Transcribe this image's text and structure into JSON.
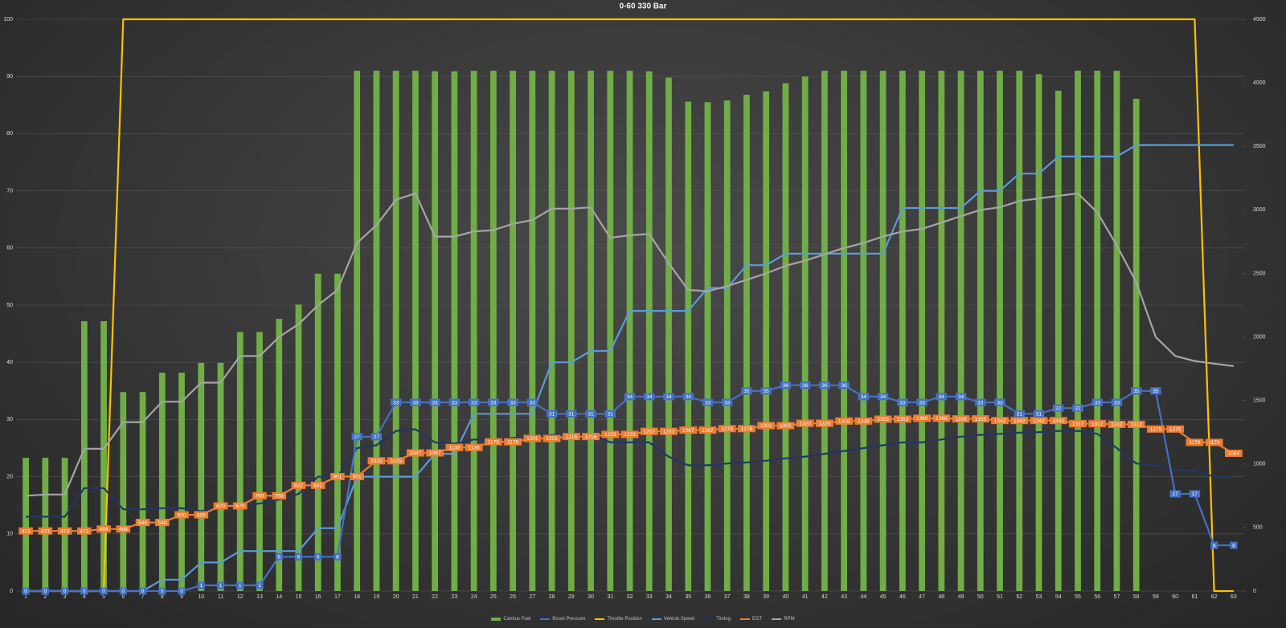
{
  "chart_data": {
    "type": "bar",
    "title": "0-60 330 Bar",
    "categories": [
      1,
      2,
      3,
      4,
      5,
      6,
      7,
      8,
      9,
      10,
      11,
      12,
      13,
      14,
      15,
      16,
      17,
      18,
      19,
      20,
      21,
      22,
      23,
      24,
      25,
      26,
      27,
      28,
      29,
      30,
      31,
      32,
      33,
      34,
      35,
      36,
      37,
      38,
      39,
      40,
      41,
      42,
      43,
      44,
      45,
      46,
      47,
      48,
      49,
      50,
      51,
      52,
      53,
      54,
      55,
      56,
      57,
      58,
      59,
      60,
      61,
      62,
      63
    ],
    "ylim": [
      0,
      100
    ],
    "yticks": [
      0,
      10,
      20,
      30,
      40,
      50,
      60,
      70,
      80,
      90,
      100
    ],
    "y2lim": [
      0,
      4500
    ],
    "y2ticks": [
      0,
      500,
      1000,
      1500,
      2000,
      2500,
      3000,
      3500,
      4000,
      4500
    ],
    "grid": true,
    "legend": "bottom",
    "series": [
      {
        "name": "Canbus Fuel",
        "type": "bar",
        "color": "#70ad47",
        "values": [
          23.3,
          23.3,
          23.3,
          47.2,
          47.2,
          34.8,
          34.8,
          38.2,
          38.2,
          39.9,
          39.9,
          45.3,
          45.3,
          47.6,
          50.1,
          55.5,
          55.5,
          91,
          91,
          91,
          91,
          90.9,
          90.9,
          91,
          91,
          91,
          91,
          91,
          91,
          91,
          91,
          91,
          90.9,
          89.8,
          85.6,
          85.5,
          85.8,
          86.8,
          87.4,
          88.8,
          90,
          91,
          91,
          91,
          91,
          91,
          91,
          91,
          91,
          91,
          91,
          91,
          90.4,
          87.5,
          91,
          91,
          91,
          86.1,
          null,
          null,
          null,
          null,
          null
        ]
      },
      {
        "name": "Boost Pressure",
        "type": "line",
        "color": "#4472c4",
        "data_labels": true,
        "values": [
          0,
          0,
          0,
          0,
          0,
          0,
          0,
          0,
          0,
          1,
          1,
          1,
          1,
          6,
          6,
          6,
          6,
          27,
          27,
          33,
          33,
          33,
          33,
          33,
          33,
          33,
          33,
          31,
          31,
          31,
          31,
          34,
          34,
          34,
          34,
          33,
          33,
          35,
          35,
          36,
          36,
          36,
          36,
          34,
          34,
          33,
          33,
          34,
          34,
          33,
          33,
          31,
          31,
          32,
          32,
          33,
          33,
          35,
          35,
          17,
          17,
          8,
          8
        ]
      },
      {
        "name": "Throttle Position",
        "type": "line",
        "color": "#ffc000",
        "values": [
          0,
          0,
          0,
          0,
          0,
          100,
          100,
          100,
          100,
          100,
          100,
          100,
          100,
          100,
          100,
          100,
          100,
          100,
          100,
          100,
          100,
          100,
          100,
          100,
          100,
          100,
          100,
          100,
          100,
          100,
          100,
          100,
          100,
          100,
          100,
          100,
          100,
          100,
          100,
          100,
          100,
          100,
          100,
          100,
          100,
          100,
          100,
          100,
          100,
          100,
          100,
          100,
          100,
          100,
          100,
          100,
          100,
          100,
          100,
          100,
          100,
          0,
          0
        ]
      },
      {
        "name": "Vehicle Speed",
        "type": "line",
        "color": "#5b9bd5",
        "values": [
          0,
          0,
          0,
          0,
          0,
          0,
          0,
          2,
          2,
          5,
          5,
          7,
          7,
          7,
          7,
          11,
          11,
          20,
          20,
          20,
          20,
          24,
          24,
          31,
          31,
          31,
          31,
          40,
          40,
          42,
          42,
          49,
          49,
          49,
          49,
          53,
          53,
          57,
          57,
          59,
          59,
          59,
          59,
          59,
          59,
          67,
          67,
          67,
          67,
          70,
          70,
          73,
          73,
          76,
          76,
          76,
          76,
          78,
          78,
          78,
          78,
          78,
          78
        ]
      },
      {
        "name": "Timing",
        "type": "line",
        "color": "#1f3864",
        "values": [
          13,
          13,
          13,
          18,
          18,
          14.3,
          14.3,
          14.5,
          14.5,
          14,
          14.5,
          15,
          15.3,
          16,
          17,
          20,
          20,
          25,
          25.5,
          28,
          28.3,
          26,
          25.8,
          26.5,
          26.5,
          26.8,
          27,
          27.3,
          27.5,
          27.5,
          26,
          26,
          26,
          23.5,
          22,
          22,
          22.3,
          22.5,
          22.8,
          23.2,
          23.5,
          24,
          24.5,
          25,
          25.5,
          26,
          26,
          26.5,
          27,
          27.3,
          27.5,
          27.7,
          27.8,
          28,
          28,
          27.5,
          25,
          22.3,
          22,
          21.2,
          21,
          20,
          20
        ]
      },
      {
        "name": "EGT",
        "type": "line",
        "axis": "y2",
        "color": "#ed7d31",
        "data_labels": true,
        "values": [
          473,
          473,
          473,
          473,
          488,
          488,
          540,
          540,
          600,
          600,
          670,
          670,
          750,
          750,
          832,
          832,
          901,
          901,
          1025,
          1025,
          1087,
          1087,
          1130,
          1130,
          1175,
          1175,
          1201,
          1201,
          1216,
          1216,
          1233,
          1233,
          1257,
          1257,
          1267,
          1267,
          1278,
          1278,
          1302,
          1302,
          1320,
          1320,
          1338,
          1338,
          1353,
          1353,
          1360,
          1360,
          1355,
          1355,
          1342,
          1342,
          1342,
          1342,
          1317,
          1317,
          1312,
          1312,
          1275,
          1275,
          1170,
          1170,
          1084
        ]
      },
      {
        "name": "RPM",
        "type": "line",
        "axis": "y2",
        "color": "#a5a5a5",
        "values": [
          750,
          760,
          760,
          1120,
          1120,
          1330,
          1330,
          1490,
          1490,
          1640,
          1640,
          1850,
          1850,
          2000,
          2100,
          2250,
          2370,
          2740,
          2880,
          3080,
          3130,
          2790,
          2790,
          2830,
          2840,
          2890,
          2920,
          3010,
          3010,
          3020,
          2780,
          2800,
          2810,
          2580,
          2370,
          2360,
          2400,
          2450,
          2500,
          2560,
          2600,
          2650,
          2700,
          2740,
          2790,
          2830,
          2850,
          2900,
          2950,
          3000,
          3020,
          3070,
          3090,
          3110,
          3130,
          2980,
          2720,
          2430,
          2000,
          1850,
          1810,
          1790,
          1770
        ]
      }
    ]
  }
}
